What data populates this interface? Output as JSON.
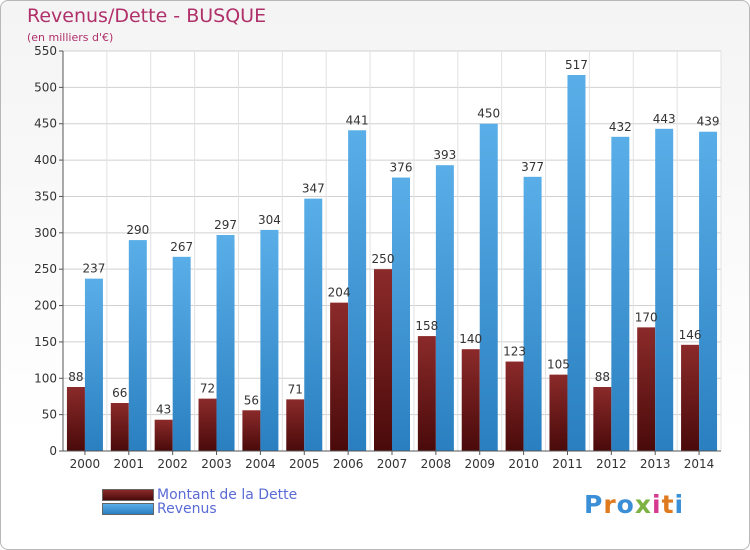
{
  "title": "Revenus/Dette - BUSQUE",
  "subtitle": "(en milliers d'€)",
  "logo": {
    "text": "Proxiti",
    "colors": [
      "#3a8fd6",
      "#e07a1e",
      "#3a8fd6",
      "#7cb342",
      "#d63a8f",
      "#e07a1e",
      "#3a8fd6"
    ]
  },
  "chart_data": {
    "type": "bar",
    "categories": [
      "2000",
      "2001",
      "2002",
      "2003",
      "2004",
      "2005",
      "2006",
      "2007",
      "2008",
      "2009",
      "2010",
      "2011",
      "2012",
      "2013",
      "2014"
    ],
    "series": [
      {
        "name": "Montant de la Dette",
        "color": "#7a1c1c",
        "values": [
          88,
          66,
          43,
          72,
          56,
          71,
          204,
          250,
          158,
          140,
          123,
          105,
          88,
          170,
          146
        ]
      },
      {
        "name": "Revenus",
        "color": "#3f9be0",
        "values": [
          237,
          290,
          267,
          297,
          304,
          347,
          441,
          376,
          393,
          450,
          377,
          517,
          432,
          443,
          439
        ]
      }
    ],
    "ylim": [
      0,
      550
    ],
    "yticks": [
      0,
      50,
      100,
      150,
      200,
      250,
      300,
      350,
      400,
      450,
      500,
      550
    ],
    "grid": true,
    "legend": "bottom-left"
  }
}
